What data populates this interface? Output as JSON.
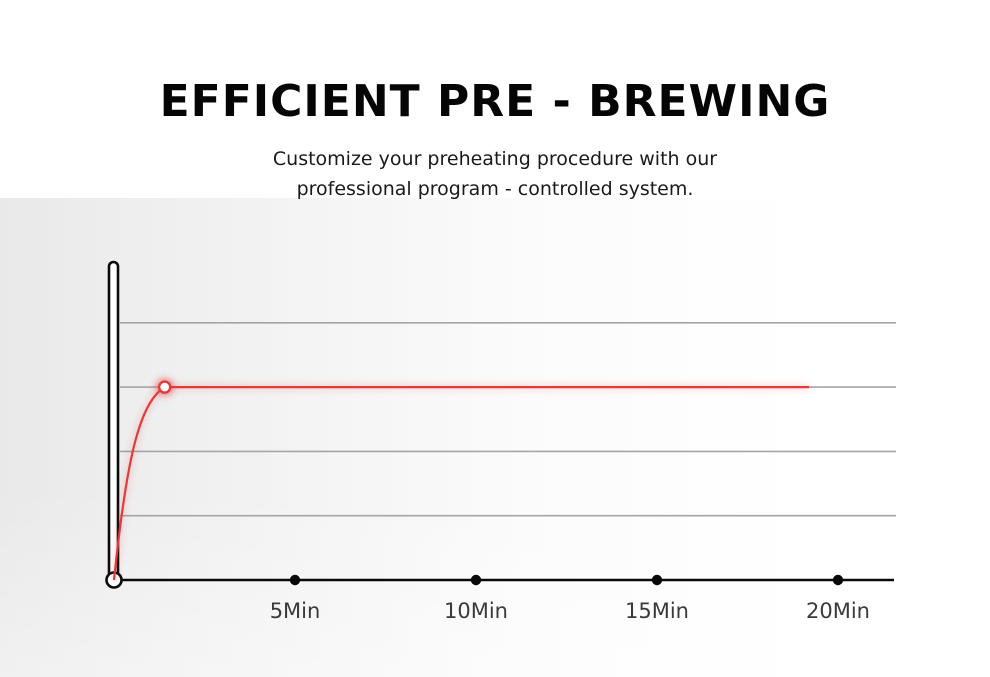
{
  "header": {
    "title": "EFFICIENT PRE - BREWING",
    "subtitle_line1": "Customize your preheating procedure with our",
    "subtitle_line2": "professional program - controlled system."
  },
  "chart_data": {
    "type": "line",
    "title": "",
    "xlabel": "",
    "ylabel": "",
    "x_ticks": [
      {
        "value": 5,
        "label": "5Min"
      },
      {
        "value": 10,
        "label": "10Min"
      },
      {
        "value": 15,
        "label": "15Min"
      },
      {
        "value": 20,
        "label": "20Min"
      }
    ],
    "xlim": [
      0,
      22.5
    ],
    "ylim": [
      0,
      5
    ],
    "gridlines_y": [
      1,
      2,
      3,
      4
    ],
    "grid": true,
    "legend": "none",
    "series": [
      {
        "color": "#e23b3b",
        "points": [
          {
            "x": 0,
            "y": 0
          },
          {
            "x": 0.3,
            "y": 1.4
          },
          {
            "x": 0.7,
            "y": 2.5
          },
          {
            "x": 1.2,
            "y": 2.9
          },
          {
            "x": 1.4,
            "y": 3.0
          },
          {
            "x": 19.2,
            "y": 3.0
          }
        ],
        "highlight_point": {
          "x": 1.4,
          "y": 3.0
        }
      }
    ]
  },
  "colors": {
    "line": "#e23b3b",
    "axis": "#0a0a0a",
    "grid": "#a5a5a5",
    "title": "#050505"
  }
}
